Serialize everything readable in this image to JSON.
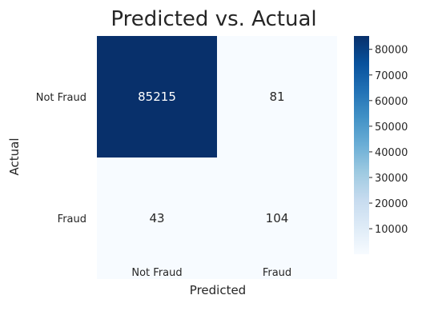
{
  "chart_data": {
    "type": "heatmap",
    "title": "Predicted vs. Actual",
    "xlabel": "Predicted",
    "ylabel": "Actual",
    "x_categories": [
      "Not Fraud",
      "Fraud"
    ],
    "y_categories": [
      "Not Fraud",
      "Fraud"
    ],
    "values": [
      [
        85215,
        81
      ],
      [
        43,
        104
      ]
    ],
    "colormap": "Blues",
    "colorbar": {
      "min": 43,
      "max": 85215,
      "ticks": [
        10000,
        20000,
        30000,
        40000,
        50000,
        60000,
        70000,
        80000
      ]
    }
  },
  "colors": {
    "dark": "#08306b",
    "mid": "#4292c6",
    "light": "#f7fbff",
    "text_dark": "#262626",
    "text_light": "#ffffff"
  }
}
